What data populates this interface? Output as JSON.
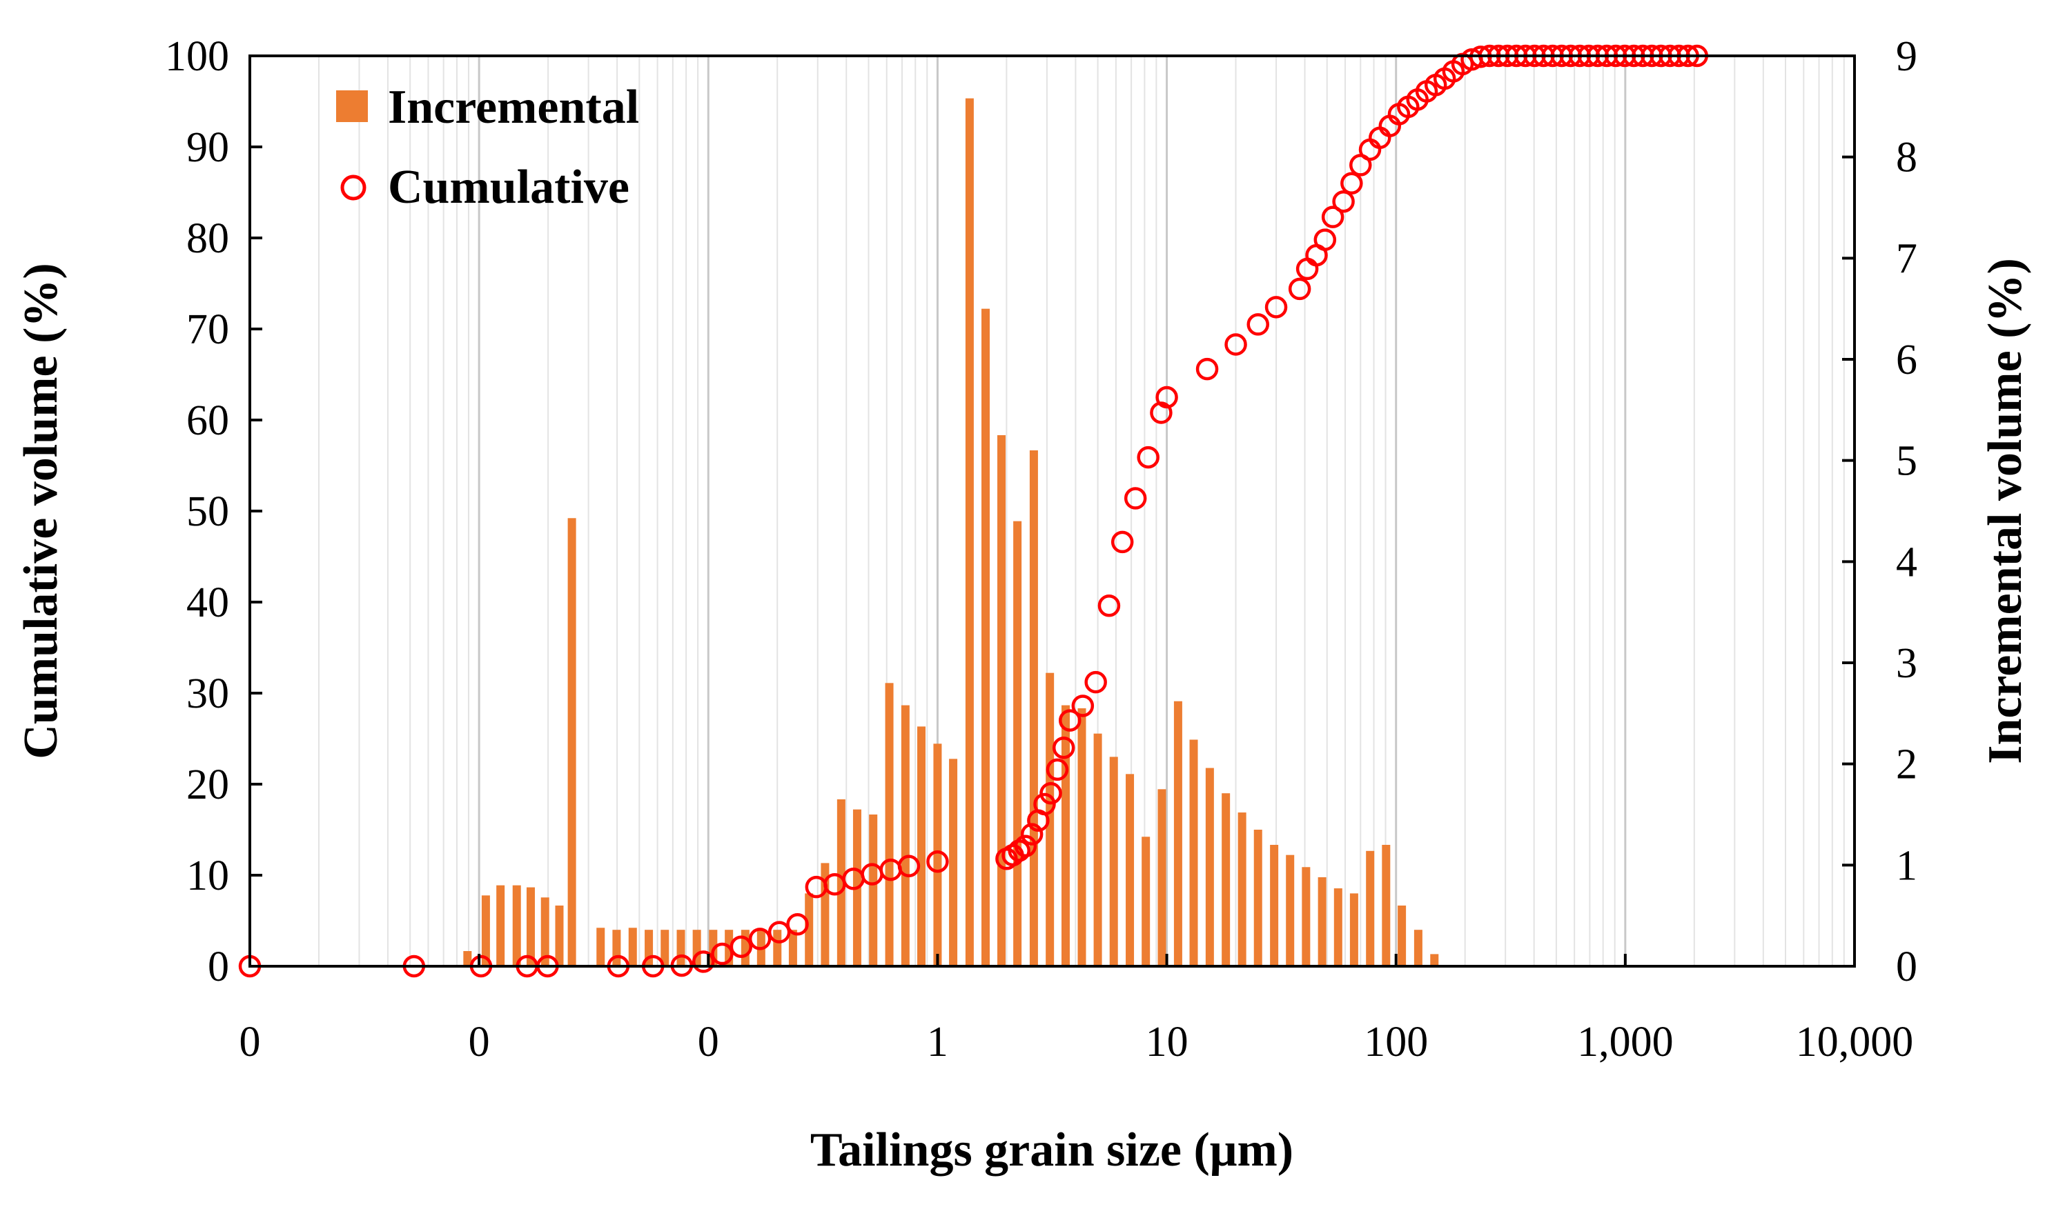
{
  "chart_data": {
    "type": "bar+scatter",
    "xscale": "log",
    "xlim": [
      0.001,
      10000
    ],
    "xtick_values": [
      0.001,
      0.01,
      0.1,
      1,
      10,
      100,
      1000,
      10000
    ],
    "xtick_labels": [
      "0",
      "0",
      "0",
      "1",
      "10",
      "100",
      "1,000",
      "10,000"
    ],
    "xlabel": "Tailings grain size (μm)",
    "ylabel_left": "Cumulative volume (%)",
    "ylabel_right": "Incremental volume (%)",
    "ylim_left": [
      0,
      100
    ],
    "ylim_right": [
      0,
      9
    ],
    "yticks_left": [
      "0",
      "10",
      "20",
      "30",
      "40",
      "50",
      "60",
      "70",
      "80",
      "90",
      "100"
    ],
    "yticks_right": [
      "0",
      "1",
      "2",
      "3",
      "4",
      "5",
      "6",
      "7",
      "8",
      "9"
    ],
    "grid": "vertical minor gridlines",
    "legend_position": "top-left",
    "series": [
      {
        "name": "Incremental",
        "type": "bar",
        "axis": "right",
        "color": "#ED7D31",
        "x": [
          0.0089,
          0.0107,
          0.0124,
          0.0146,
          0.0168,
          0.0194,
          0.0224,
          0.0254,
          0.0339,
          0.0398,
          0.0468,
          0.055,
          0.0646,
          0.0759,
          0.0891,
          0.105,
          0.123,
          0.145,
          0.17,
          0.2,
          0.234,
          0.275,
          0.323,
          0.38,
          0.446,
          0.524,
          0.616,
          0.724,
          0.85,
          1.0,
          1.17,
          1.38,
          1.62,
          1.9,
          2.23,
          2.63,
          3.09,
          3.62,
          4.26,
          5.0,
          5.87,
          6.9,
          8.1,
          9.52,
          11.2,
          13.1,
          15.4,
          18.1,
          21.3,
          25.0,
          29.4,
          34.5,
          40.5,
          47.6,
          55.9,
          65.6,
          77.1,
          90.5,
          106,
          125,
          147,
          172,
          203,
          238,
          280
        ],
        "values": [
          0.15,
          0.7,
          0.8,
          0.8,
          0.78,
          0.68,
          0.6,
          4.43,
          0.38,
          0.36,
          0.38,
          0.36,
          0.36,
          0.36,
          0.36,
          0.36,
          0.36,
          0.36,
          0.36,
          0.36,
          0.36,
          0.72,
          1.02,
          1.65,
          1.55,
          1.5,
          2.8,
          2.58,
          2.37,
          2.2,
          2.05,
          8.58,
          6.5,
          5.25,
          4.4,
          5.1,
          2.9,
          2.58,
          2.55,
          2.3,
          2.07,
          1.9,
          1.28,
          1.75,
          2.62,
          2.24,
          1.96,
          1.71,
          1.52,
          1.35,
          1.2,
          1.1,
          0.98,
          0.88,
          0.77,
          0.72,
          1.14,
          1.2,
          0.6,
          0.36,
          0.12,
          0,
          0,
          0,
          0
        ]
      },
      {
        "name": "Cumulative",
        "type": "scatter",
        "axis": "left",
        "color": "#FF0000",
        "x": [
          0.001,
          0.0052,
          0.0102,
          0.0162,
          0.0199,
          0.0405,
          0.0574,
          0.0766,
          0.0952,
          0.115,
          0.139,
          0.168,
          0.204,
          0.245,
          0.296,
          0.356,
          0.43,
          0.518,
          0.625,
          0.75,
          1.0,
          2.0,
          2.13,
          2.27,
          2.42,
          2.58,
          2.75,
          2.93,
          3.12,
          3.33,
          3.55,
          3.78,
          4.3,
          4.9,
          5.6,
          6.4,
          7.3,
          8.3,
          9.45,
          10.0,
          15.0,
          20.0,
          25.0,
          30.0,
          38.0,
          41.0,
          45.0,
          49.0,
          53.0,
          59.0,
          64.0,
          70.0,
          77.0,
          85.0,
          94.0,
          103.0,
          113.0,
          124.0,
          136.0,
          149.0,
          163.0,
          178.0,
          195.0,
          214.0,
          234.0,
          256.0,
          280.0,
          306.0,
          335.0,
          367.0,
          402.0,
          440.0,
          482.0,
          528.0,
          578.0,
          633.0,
          693.0,
          758.0,
          830.0,
          909.0,
          995.0,
          1090.0,
          1193.0,
          1306.0,
          1430.0,
          1566.0,
          1714.0,
          1877.0,
          2055.0
        ],
        "values": [
          0,
          0,
          0,
          0,
          0,
          0,
          0,
          0.07,
          0.5,
          1.36,
          2.14,
          3.0,
          3.74,
          4.6,
          8.7,
          9.0,
          9.6,
          10.1,
          10.6,
          11.0,
          11.5,
          11.8,
          12.2,
          12.7,
          13.2,
          14.5,
          16.0,
          17.8,
          19.0,
          21.6,
          24.0,
          27.0,
          28.6,
          31.2,
          39.6,
          46.6,
          51.4,
          55.9,
          60.8,
          62.5,
          65.6,
          68.3,
          70.5,
          72.4,
          74.4,
          76.6,
          78.1,
          79.8,
          82.3,
          84.0,
          86.0,
          88.0,
          89.7,
          91.0,
          92.3,
          93.6,
          94.4,
          95.2,
          96.1,
          96.8,
          97.5,
          98.3,
          99.1,
          99.6,
          99.9,
          100,
          100,
          100,
          100,
          100,
          100,
          100,
          100,
          100,
          100,
          100,
          100,
          100,
          100,
          100,
          100,
          100,
          100,
          100,
          100,
          100,
          100,
          100,
          100
        ]
      }
    ]
  }
}
